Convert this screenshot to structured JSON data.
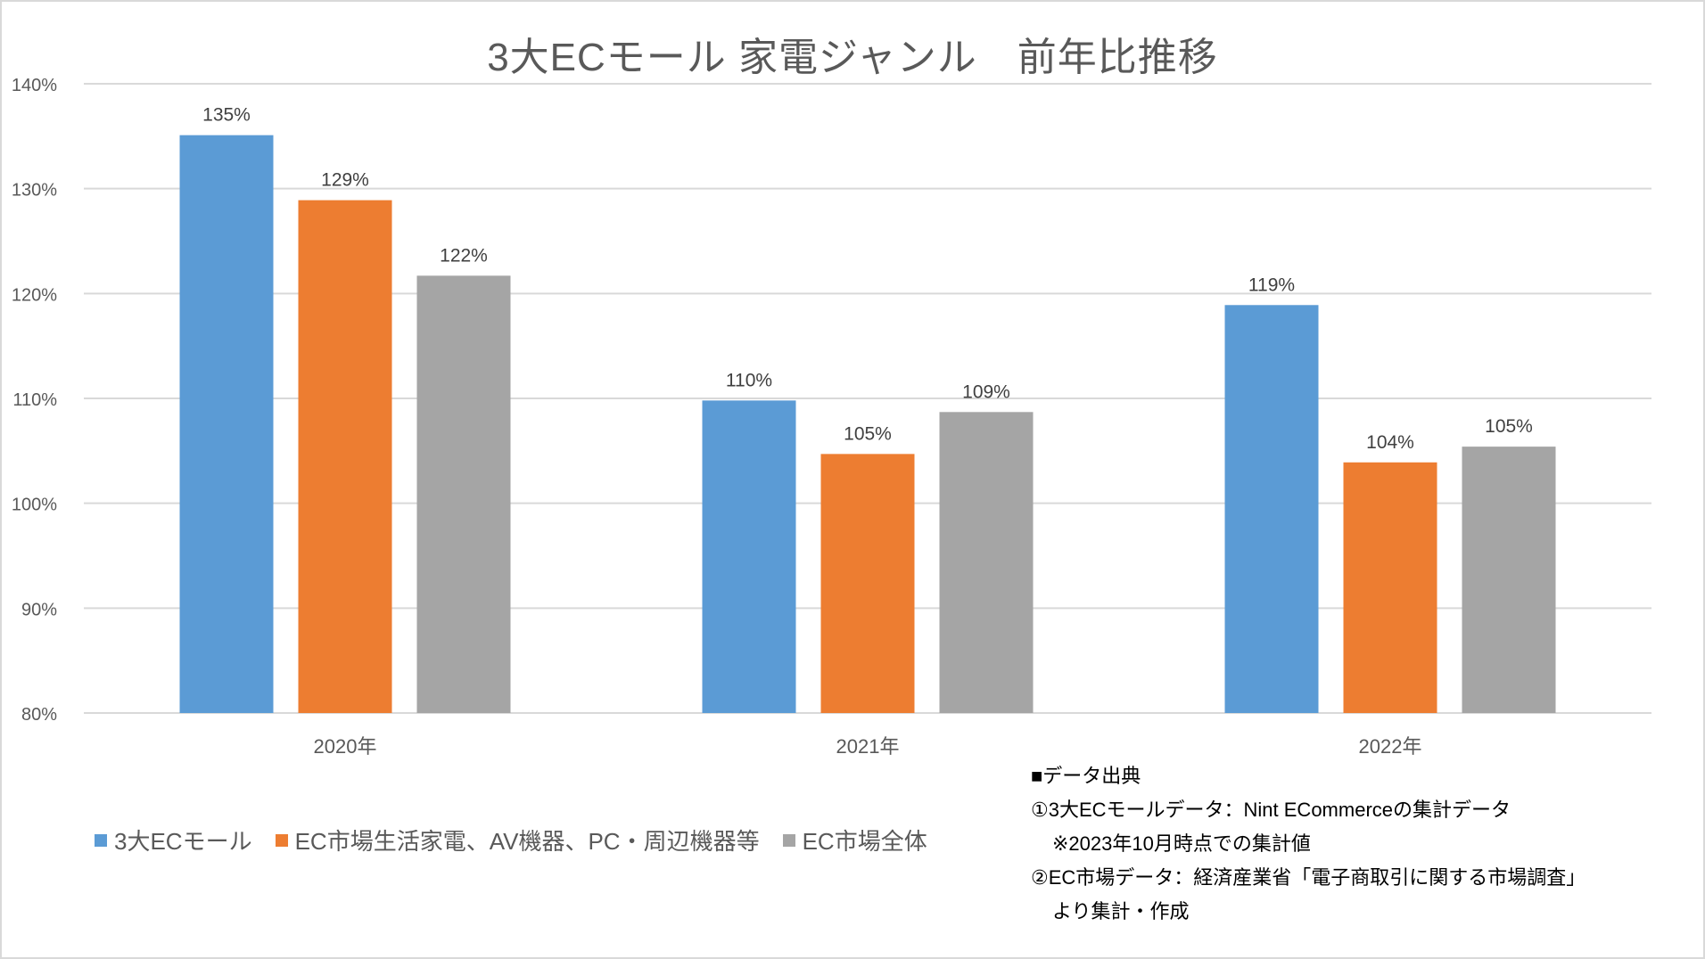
{
  "chart_data": {
    "type": "bar",
    "title": "3大ECモール 家電ジャンル　前年比推移",
    "xlabel": "",
    "ylabel": "",
    "ylim": [
      80,
      140
    ],
    "yticks": [
      80,
      90,
      100,
      110,
      120,
      130,
      140
    ],
    "ytick_labels": [
      "80%",
      "90%",
      "100%",
      "110%",
      "120%",
      "130%",
      "140%"
    ],
    "grid": true,
    "legend_position": "bottom-left",
    "categories": [
      "2020年",
      "2021年",
      "2022年"
    ],
    "series": [
      {
        "name": "3大ECモール",
        "color": "#5b9bd5",
        "values": [
          135.1,
          109.8,
          118.9
        ],
        "labels": [
          "135%",
          "110%",
          "119%"
        ]
      },
      {
        "name": "EC市場生活家電、AV機器、PC・周辺機器等",
        "color": "#ed7d31",
        "values": [
          128.9,
          104.7,
          103.9
        ],
        "labels": [
          "129%",
          "105%",
          "104%"
        ]
      },
      {
        "name": "EC市場全体",
        "color": "#a5a5a5",
        "values": [
          121.7,
          108.7,
          105.4
        ],
        "labels": [
          "122%",
          "109%",
          "105%"
        ]
      }
    ]
  },
  "source_note": {
    "heading": "■データ出典",
    "line1": "①3大ECモールデータ：Nint ECommerceの集計データ",
    "line2": "※2023年10月時点での集計値",
    "line3": "②EC市場データ：経済産業省「電子商取引に関する市場調査」",
    "line4": "より集計・作成"
  }
}
